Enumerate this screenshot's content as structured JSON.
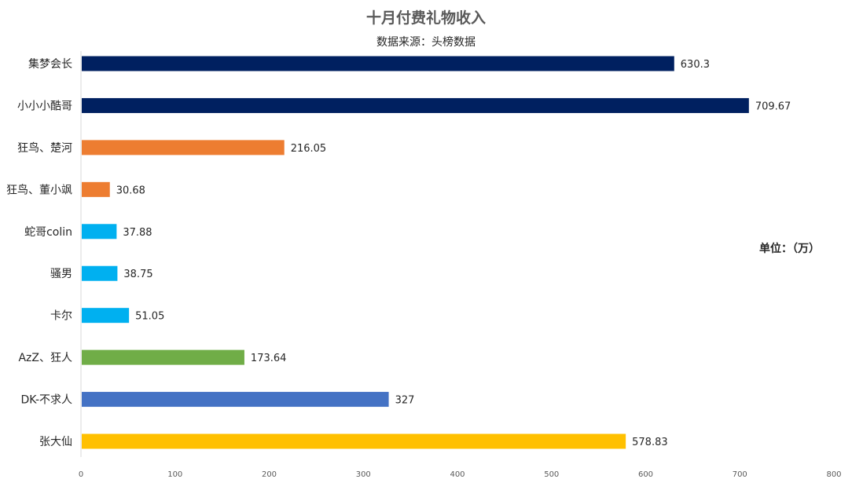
{
  "chart_data": {
    "type": "bar",
    "orientation": "horizontal",
    "title": "十月付费礼物收入",
    "subtitle": "数据来源：头榜数据",
    "unit_note": "单位：（万）",
    "categories": [
      "集梦会长",
      "小小小酷哥",
      "狂鸟、楚河",
      "狂鸟、董小飒",
      "蛇哥colin",
      "骚男",
      "卡尔",
      "AzZ、狂人",
      "DK-不求人",
      "张大仙"
    ],
    "values": [
      630.3,
      709.67,
      216.05,
      30.68,
      37.88,
      38.75,
      51.05,
      173.64,
      327,
      578.83
    ],
    "value_labels": [
      "630.3",
      "709.67",
      "216.05",
      "30.68",
      "37.88",
      "38.75",
      "51.05",
      "173.64",
      "327",
      "578.83"
    ],
    "bar_colors": [
      "#002060",
      "#002060",
      "#ED7D31",
      "#ED7D31",
      "#00B0F0",
      "#00B0F0",
      "#00B0F0",
      "#70AD47",
      "#4472C4",
      "#FFC000"
    ],
    "xlim": [
      0,
      800
    ],
    "x_ticks": [
      0,
      100,
      200,
      300,
      400,
      500,
      600,
      700,
      800
    ],
    "grid": false,
    "legend": "none"
  }
}
